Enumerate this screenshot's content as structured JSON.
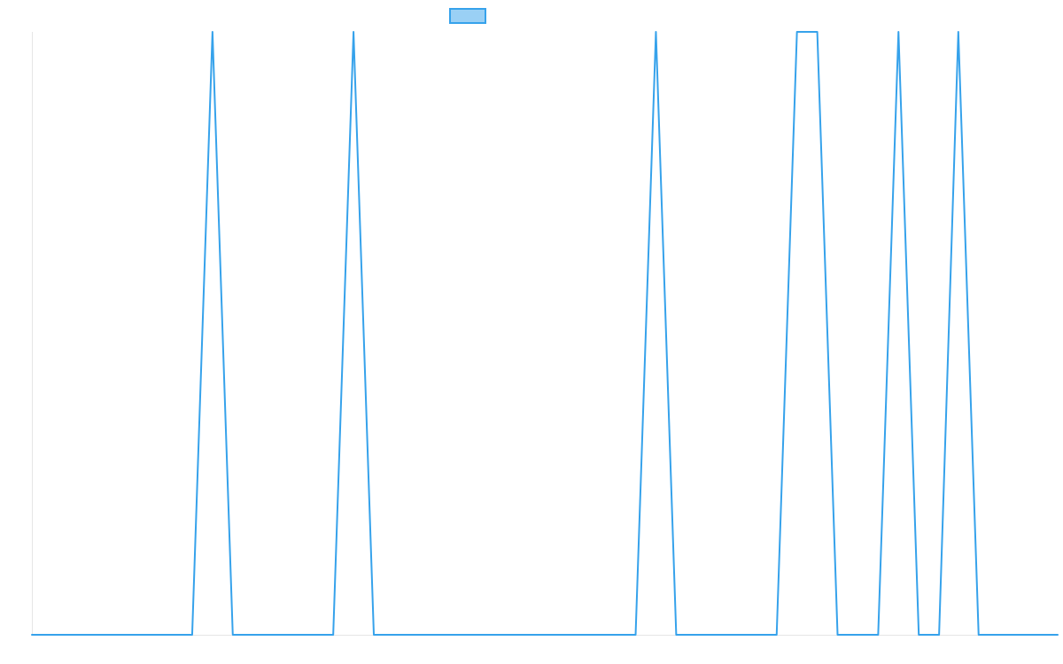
{
  "chart_data": {
    "type": "line",
    "title": "",
    "xlabel": "",
    "ylabel": "",
    "x_count": 96,
    "ylim": [
      0,
      1
    ],
    "grid": false,
    "legend_position": "top-center",
    "colors": {
      "line": "#36A2EB",
      "legend_fill": "#9AD0F5",
      "axis": "#E6E6E6",
      "background": "#FFFFFF"
    },
    "series": [
      {
        "name": "",
        "points": [
          [
            0,
            0
          ],
          [
            15,
            0
          ],
          [
            16.9,
            1
          ],
          [
            18.8,
            0
          ],
          [
            28.2,
            0
          ],
          [
            30.1,
            1
          ],
          [
            32,
            0
          ],
          [
            56.5,
            0
          ],
          [
            58.4,
            1
          ],
          [
            60.3,
            0
          ],
          [
            69.7,
            0
          ],
          [
            71.6,
            1
          ],
          [
            73.5,
            1
          ],
          [
            75.4,
            0
          ],
          [
            79.2,
            0
          ],
          [
            81.1,
            1
          ],
          [
            83,
            0
          ],
          [
            84.9,
            0
          ],
          [
            86.7,
            1
          ],
          [
            88.6,
            0
          ],
          [
            96,
            0
          ]
        ]
      }
    ]
  }
}
